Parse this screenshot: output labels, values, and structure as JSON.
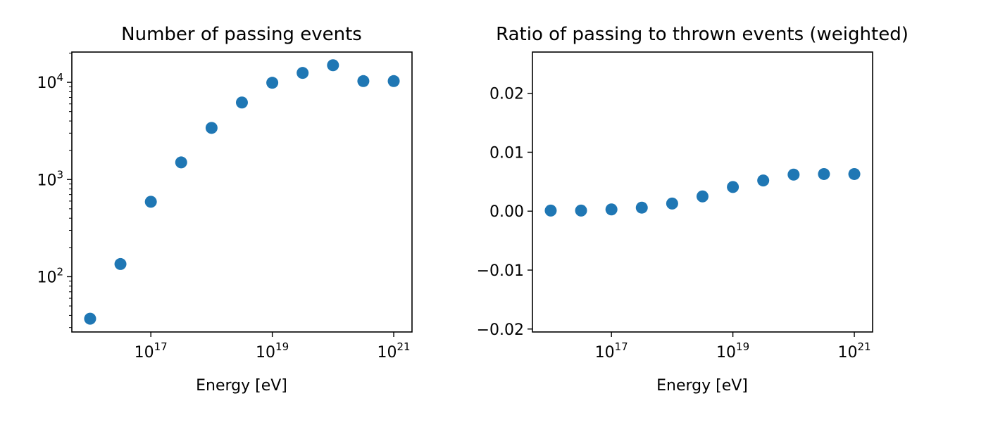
{
  "marker_color": "#1f77b4",
  "chart_data": [
    {
      "type": "scatter",
      "title": "Number of passing events",
      "xlabel": "Energy [eV]",
      "ylabel": "",
      "xscale": "log",
      "yscale": "log",
      "xlim": [
        5000000000000000.0,
        2e+21
      ],
      "ylim": [
        27,
        20500
      ],
      "xticks": [
        {
          "value": 1e+17,
          "label": "10",
          "exp": "17"
        },
        {
          "value": 1e+19,
          "label": "10",
          "exp": "19"
        },
        {
          "value": 1e+21,
          "label": "10",
          "exp": "21"
        }
      ],
      "yticks": [
        {
          "value": 100,
          "label": "10",
          "exp": "2"
        },
        {
          "value": 1000,
          "label": "10",
          "exp": "3"
        },
        {
          "value": 10000,
          "label": "10",
          "exp": "4"
        }
      ],
      "grid": false,
      "series": [
        {
          "x": [
            1e+16,
            3.16e+16,
            1e+17,
            3.16e+17,
            1e+18,
            3.16e+18,
            1e+19,
            3.16e+19,
            1e+20,
            3.16e+20,
            1e+21
          ],
          "y": [
            37,
            135,
            590,
            1500,
            3400,
            6200,
            9900,
            12500,
            15000,
            10300,
            10300
          ]
        }
      ]
    },
    {
      "type": "scatter",
      "title": "Ratio of passing to thrown events (weighted)",
      "xlabel": "Energy [eV]",
      "ylabel": "",
      "xscale": "log",
      "yscale": "linear",
      "xlim": [
        5000000000000000.0,
        2e+21
      ],
      "ylim": [
        -0.0205,
        0.027
      ],
      "xticks": [
        {
          "value": 1e+17,
          "label": "10",
          "exp": "17"
        },
        {
          "value": 1e+19,
          "label": "10",
          "exp": "19"
        },
        {
          "value": 1e+21,
          "label": "10",
          "exp": "21"
        }
      ],
      "yticks": [
        {
          "value": -0.02,
          "label": "−0.02"
        },
        {
          "value": -0.01,
          "label": "−0.01"
        },
        {
          "value": 0.0,
          "label": "0.00"
        },
        {
          "value": 0.01,
          "label": "0.01"
        },
        {
          "value": 0.02,
          "label": "0.02"
        }
      ],
      "grid": false,
      "series": [
        {
          "x": [
            1e+16,
            3.16e+16,
            1e+17,
            3.16e+17,
            1e+18,
            3.16e+18,
            1e+19,
            3.16e+19,
            1e+20,
            3.16e+20,
            1e+21
          ],
          "y": [
            0.0001,
            0.0001,
            0.0003,
            0.0006,
            0.0013,
            0.0025,
            0.0041,
            0.0052,
            0.0062,
            0.0063,
            0.0063
          ]
        }
      ]
    }
  ]
}
